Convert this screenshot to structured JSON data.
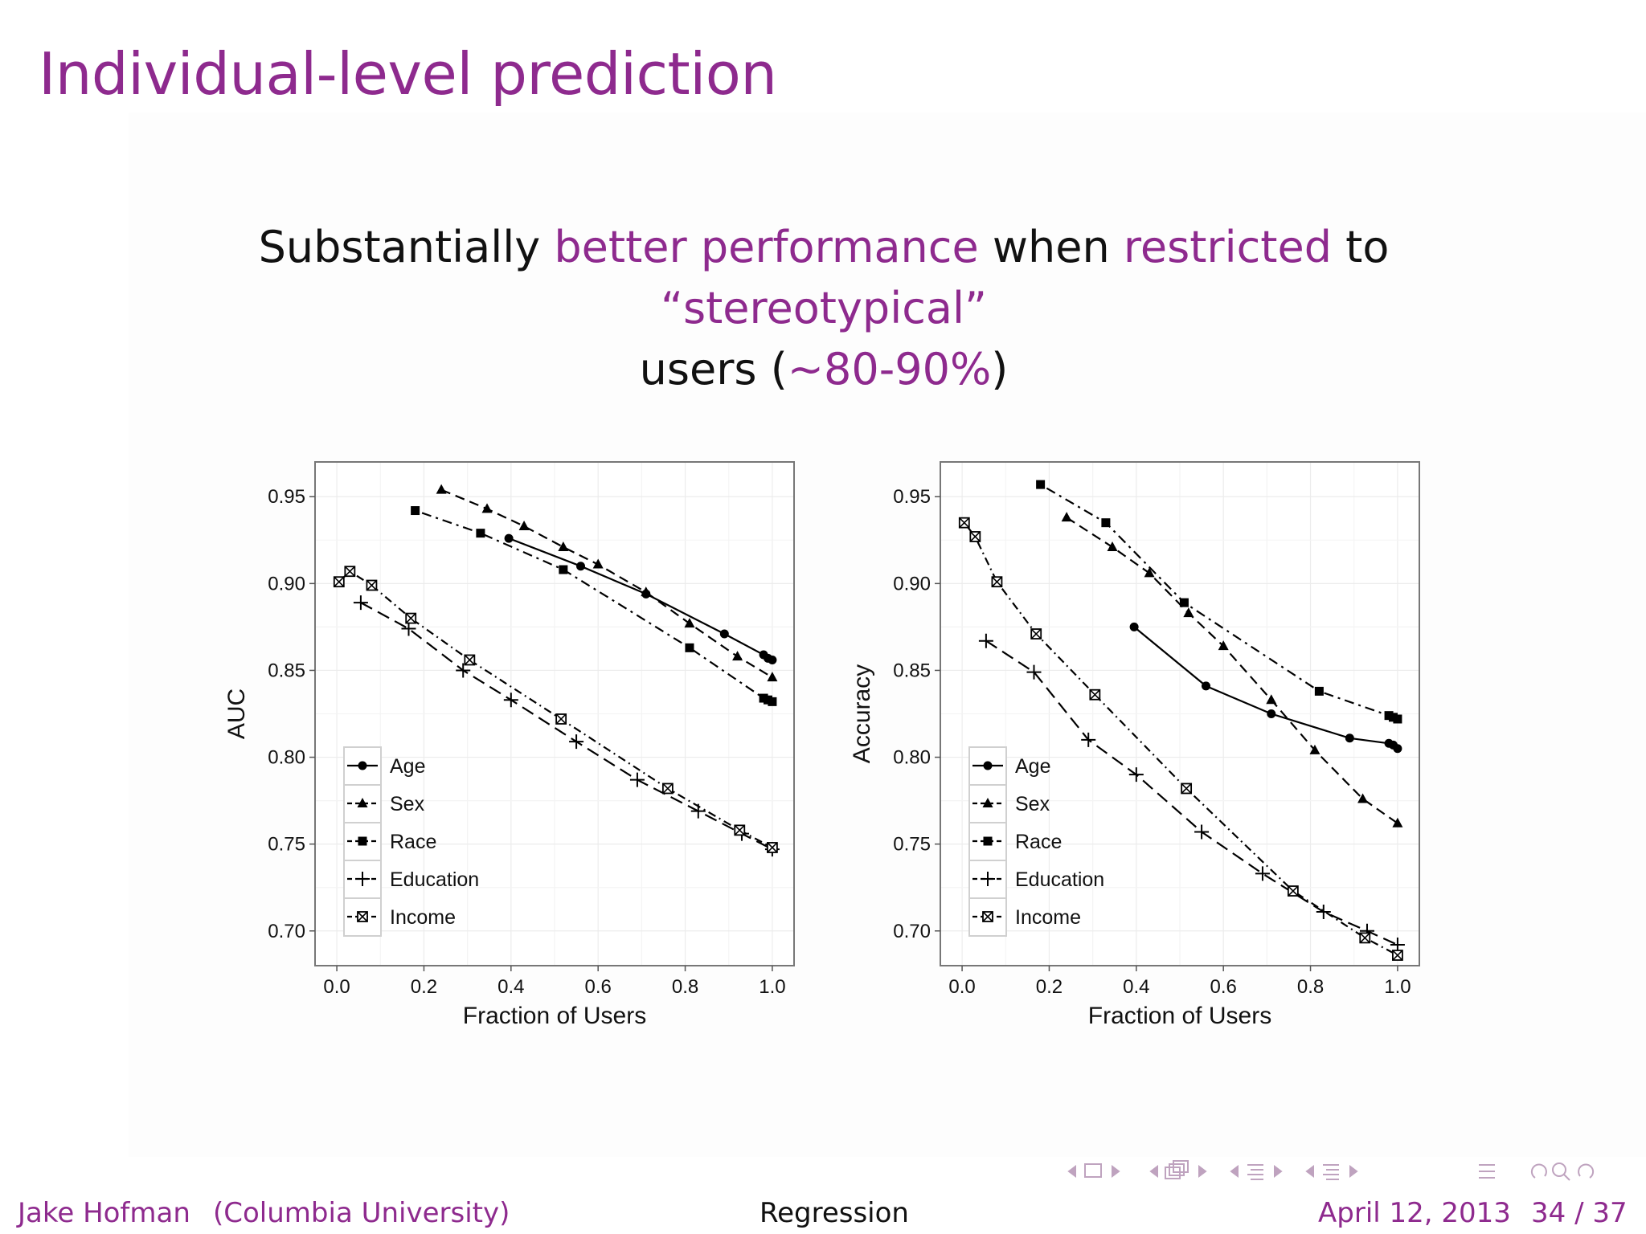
{
  "slide": {
    "title": "Individual-level prediction",
    "subtitle": {
      "t1": "Substantially ",
      "t2": "better performance",
      "t3": " when ",
      "t4": "restricted",
      "t5": " to ",
      "t6": "“stereotypical”",
      "t7": " users (",
      "t8": "∼80-90%",
      "t9": ")"
    }
  },
  "footer": {
    "author": "Jake Hofman",
    "institution": "(Columbia University)",
    "title": "Regression",
    "date": "April 12, 2013",
    "page": "34 / 37"
  },
  "colors": {
    "accent": "#8e2a8e",
    "text": "#111111"
  },
  "nav_icons": [
    "arrow-left-icon",
    "frame-icon",
    "arrow-right-icon",
    "arrow-left-icon",
    "frames-icon",
    "arrow-right-icon",
    "arrow-left-icon",
    "section-icon",
    "arrow-right-icon",
    "arrow-left-icon",
    "subsection-icon",
    "arrow-right-icon",
    "align-icon",
    "undo-icon",
    "search-icon",
    "redo-icon"
  ],
  "chart_data": [
    {
      "type": "line",
      "xlabel": "Fraction of Users",
      "ylabel": "AUC",
      "xlim": [
        -0.05,
        1.05
      ],
      "ylim": [
        0.68,
        0.97
      ],
      "xticks": [
        0.0,
        0.2,
        0.4,
        0.6,
        0.8,
        1.0
      ],
      "xtick_labels": [
        "0.0",
        "0.2",
        "0.4",
        "0.6",
        "0.8",
        "1.0"
      ],
      "yticks": [
        0.7,
        0.75,
        0.8,
        0.85,
        0.9,
        0.95
      ],
      "ytick_labels": [
        "0.70",
        "0.75",
        "0.80",
        "0.85",
        "0.90",
        "0.95"
      ],
      "grid": true,
      "legend_position": "bottom-left",
      "series": [
        {
          "name": "Age",
          "marker": "circle",
          "dash": "solid",
          "x": [
            0.395,
            0.56,
            0.71,
            0.89,
            0.98,
            0.99,
            1.0
          ],
          "y": [
            0.926,
            0.91,
            0.894,
            0.871,
            0.859,
            0.857,
            0.856
          ]
        },
        {
          "name": "Sex",
          "marker": "triangle",
          "dash": "dashed",
          "x": [
            0.24,
            0.345,
            0.43,
            0.52,
            0.6,
            0.71,
            0.81,
            0.92,
            1.0
          ],
          "y": [
            0.954,
            0.943,
            0.933,
            0.921,
            0.911,
            0.895,
            0.877,
            0.858,
            0.846
          ]
        },
        {
          "name": "Race",
          "marker": "square",
          "dash": "dotdash",
          "x": [
            0.18,
            0.33,
            0.52,
            0.81,
            0.98,
            0.99,
            1.0
          ],
          "y": [
            0.942,
            0.929,
            0.908,
            0.863,
            0.834,
            0.833,
            0.832
          ]
        },
        {
          "name": "Education",
          "marker": "plus",
          "dash": "longdash",
          "x": [
            0.055,
            0.165,
            0.29,
            0.4,
            0.55,
            0.69,
            0.83,
            0.93,
            1.0
          ],
          "y": [
            0.889,
            0.874,
            0.85,
            0.833,
            0.809,
            0.787,
            0.769,
            0.756,
            0.747
          ]
        },
        {
          "name": "Income",
          "marker": "boxx",
          "dash": "dotdash2",
          "x": [
            0.005,
            0.03,
            0.08,
            0.17,
            0.305,
            0.515,
            0.76,
            0.925,
            1.0
          ],
          "y": [
            0.901,
            0.907,
            0.899,
            0.88,
            0.856,
            0.822,
            0.782,
            0.758,
            0.748
          ]
        }
      ]
    },
    {
      "type": "line",
      "xlabel": "Fraction of Users",
      "ylabel": "Accuracy",
      "xlim": [
        -0.05,
        1.05
      ],
      "ylim": [
        0.68,
        0.97
      ],
      "xticks": [
        0.0,
        0.2,
        0.4,
        0.6,
        0.8,
        1.0
      ],
      "xtick_labels": [
        "0.0",
        "0.2",
        "0.4",
        "0.6",
        "0.8",
        "1.0"
      ],
      "yticks": [
        0.7,
        0.75,
        0.8,
        0.85,
        0.9,
        0.95
      ],
      "ytick_labels": [
        "0.70",
        "0.75",
        "0.80",
        "0.85",
        "0.90",
        "0.95"
      ],
      "grid": true,
      "legend_position": "bottom-left",
      "series": [
        {
          "name": "Age",
          "marker": "circle",
          "dash": "solid",
          "x": [
            0.395,
            0.56,
            0.71,
            0.89,
            0.98,
            0.99,
            1.0
          ],
          "y": [
            0.875,
            0.841,
            0.825,
            0.811,
            0.808,
            0.807,
            0.805
          ]
        },
        {
          "name": "Sex",
          "marker": "triangle",
          "dash": "dashed",
          "x": [
            0.24,
            0.345,
            0.43,
            0.52,
            0.6,
            0.71,
            0.81,
            0.92,
            1.0
          ],
          "y": [
            0.938,
            0.921,
            0.906,
            0.883,
            0.864,
            0.833,
            0.804,
            0.776,
            0.762
          ]
        },
        {
          "name": "Race",
          "marker": "square",
          "dash": "dotdash",
          "x": [
            0.18,
            0.33,
            0.51,
            0.82,
            0.98,
            0.99,
            1.0
          ],
          "y": [
            0.957,
            0.935,
            0.889,
            0.838,
            0.824,
            0.823,
            0.822
          ]
        },
        {
          "name": "Education",
          "marker": "plus",
          "dash": "longdash",
          "x": [
            0.055,
            0.165,
            0.29,
            0.4,
            0.55,
            0.69,
            0.83,
            0.93,
            1.0
          ],
          "y": [
            0.867,
            0.849,
            0.81,
            0.79,
            0.757,
            0.733,
            0.711,
            0.7,
            0.692
          ]
        },
        {
          "name": "Income",
          "marker": "boxx",
          "dash": "dotdash2",
          "x": [
            0.005,
            0.03,
            0.08,
            0.17,
            0.305,
            0.515,
            0.76,
            0.925,
            1.0
          ],
          "y": [
            0.935,
            0.927,
            0.901,
            0.871,
            0.836,
            0.782,
            0.723,
            0.696,
            0.686
          ]
        }
      ]
    }
  ]
}
